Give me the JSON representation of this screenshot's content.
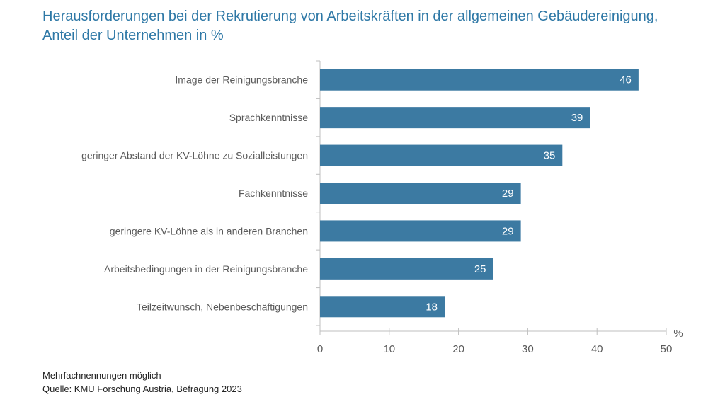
{
  "title_line1": "Herausforderungen bei der Rekrutierung von Arbeitskräften in der allgemeinen Gebäudereinigung,",
  "title_line2": "Anteil der Unternehmen in %",
  "footer": {
    "note": "Mehrfachnennungen möglich",
    "source": "Quelle: KMU Forschung Austria, Befragung 2023"
  },
  "colors": {
    "bar": "#3c7aa2",
    "title": "#2e78a6",
    "axis": "#bfbfbf",
    "label": "#595959"
  },
  "chart_data": {
    "type": "bar",
    "orientation": "horizontal",
    "title": "Herausforderungen bei der Rekrutierung von Arbeitskräften in der allgemeinen Gebäudereinigung, Anteil der Unternehmen in %",
    "categories": [
      "Image der Reinigungsbranche",
      "Sprachkenntnisse",
      "geringer Abstand der KV-Löhne zu Sozialleistungen",
      "Fachkenntnisse",
      "geringere KV-Löhne als in anderen Branchen",
      "Arbeitsbedingungen in der Reinigungsbranche",
      "Teilzeitwunsch, Nebenbeschäftigungen"
    ],
    "values": [
      46,
      39,
      35,
      29,
      29,
      25,
      18
    ],
    "xlabel": "%",
    "xlim": [
      0,
      50
    ],
    "xticks": [
      0,
      10,
      20,
      30,
      40,
      50
    ],
    "grid": false,
    "legend": "none",
    "data_labels": "inside-end"
  }
}
